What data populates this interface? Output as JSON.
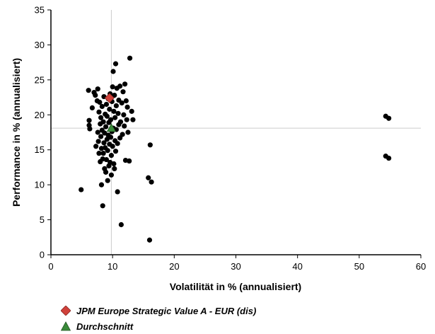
{
  "chart_data": {
    "type": "scatter",
    "xlabel": "Volatilität in % (annualisiert)",
    "ylabel": "Performance in % (annualisiert)",
    "xlim": [
      0,
      60
    ],
    "ylim": [
      0,
      35
    ],
    "x_ticks": [
      0,
      10,
      20,
      30,
      40,
      50,
      60
    ],
    "y_ticks": [
      0,
      5,
      10,
      15,
      20,
      25,
      30,
      35
    ],
    "grid": false,
    "reference_lines": {
      "x": 9.8,
      "y": 18.1,
      "color": "#cccccc"
    },
    "series": [
      {
        "marker": "circle",
        "color": "#000000",
        "points": [
          [
            4.9,
            9.3
          ],
          [
            6.2,
            18.5
          ],
          [
            6.2,
            19.2
          ],
          [
            6.3,
            18.0
          ],
          [
            6.1,
            23.5
          ],
          [
            6.7,
            21.0
          ],
          [
            7.0,
            23.2
          ],
          [
            7.2,
            22.8
          ],
          [
            7.3,
            15.5
          ],
          [
            7.5,
            22.0
          ],
          [
            7.6,
            23.7
          ],
          [
            7.6,
            17.5
          ],
          [
            7.7,
            16.2
          ],
          [
            7.8,
            14.5
          ],
          [
            7.8,
            20.4
          ],
          [
            7.9,
            21.8
          ],
          [
            8.0,
            13.3
          ],
          [
            8.0,
            18.7
          ],
          [
            8.1,
            16.9
          ],
          [
            8.1,
            19.6
          ],
          [
            8.2,
            10.0
          ],
          [
            8.2,
            15.2
          ],
          [
            8.3,
            21.2
          ],
          [
            8.3,
            17.8
          ],
          [
            8.4,
            7.0
          ],
          [
            8.4,
            13.7
          ],
          [
            8.5,
            14.5
          ],
          [
            8.5,
            19.0
          ],
          [
            8.6,
            16.0
          ],
          [
            8.6,
            22.6
          ],
          [
            8.7,
            12.3
          ],
          [
            8.7,
            17.4
          ],
          [
            8.8,
            20.1
          ],
          [
            8.8,
            15.3
          ],
          [
            8.9,
            11.8
          ],
          [
            8.9,
            18.3
          ],
          [
            9.0,
            13.6
          ],
          [
            9.0,
            21.5
          ],
          [
            9.1,
            16.5
          ],
          [
            9.1,
            19.8
          ],
          [
            9.2,
            10.6
          ],
          [
            9.2,
            14.9
          ],
          [
            9.3,
            17.1
          ],
          [
            9.3,
            22.3
          ],
          [
            9.4,
            12.7
          ],
          [
            9.4,
            18.9
          ],
          [
            9.5,
            15.8
          ],
          [
            9.5,
            20.8
          ],
          [
            9.6,
            13.2
          ],
          [
            9.6,
            23.0
          ],
          [
            9.7,
            16.8
          ],
          [
            9.7,
            19.3
          ],
          [
            9.8,
            11.4
          ],
          [
            9.8,
            14.2
          ],
          [
            9.9,
            17.6
          ],
          [
            9.9,
            21.9
          ],
          [
            10.0,
            24.0
          ],
          [
            10.0,
            15.5
          ],
          [
            10.1,
            26.2
          ],
          [
            10.1,
            18.1
          ],
          [
            10.2,
            20.5
          ],
          [
            10.2,
            13.0
          ],
          [
            10.3,
            12.3
          ],
          [
            10.3,
            22.8
          ],
          [
            10.4,
            16.3
          ],
          [
            10.4,
            19.6
          ],
          [
            10.5,
            27.3
          ],
          [
            10.5,
            14.8
          ],
          [
            10.6,
            21.3
          ],
          [
            10.6,
            17.9
          ],
          [
            10.7,
            23.8
          ],
          [
            10.8,
            9.0
          ],
          [
            10.8,
            15.9
          ],
          [
            10.9,
            20.2
          ],
          [
            11.0,
            18.6
          ],
          [
            11.0,
            22.1
          ],
          [
            11.2,
            16.7
          ],
          [
            11.2,
            24.1
          ],
          [
            11.3,
            19.0
          ],
          [
            11.4,
            4.3
          ],
          [
            11.5,
            21.7
          ],
          [
            11.6,
            17.2
          ],
          [
            11.7,
            23.3
          ],
          [
            11.8,
            20.0
          ],
          [
            11.9,
            18.4
          ],
          [
            12.0,
            24.4
          ],
          [
            12.1,
            13.5
          ],
          [
            12.2,
            22.0
          ],
          [
            12.3,
            19.3
          ],
          [
            12.4,
            21.1
          ],
          [
            12.5,
            17.5
          ],
          [
            12.7,
            13.4
          ],
          [
            12.8,
            28.1
          ],
          [
            13.1,
            20.5
          ],
          [
            13.3,
            19.3
          ],
          [
            15.8,
            11.0
          ],
          [
            16.0,
            2.1
          ],
          [
            16.1,
            15.7
          ],
          [
            16.3,
            10.4
          ],
          [
            54.3,
            19.8
          ],
          [
            54.8,
            19.5
          ],
          [
            54.3,
            14.1
          ],
          [
            54.8,
            13.8
          ]
        ]
      },
      {
        "name": "JPM Europe Strategic Value A - EUR (dis)",
        "marker": "diamond",
        "color": "#d0413a",
        "points": [
          [
            9.5,
            22.4
          ]
        ]
      },
      {
        "name": "Durchschnitt",
        "marker": "triangle",
        "color": "#3a8a3a",
        "points": [
          [
            9.8,
            18.1
          ]
        ]
      }
    ]
  }
}
